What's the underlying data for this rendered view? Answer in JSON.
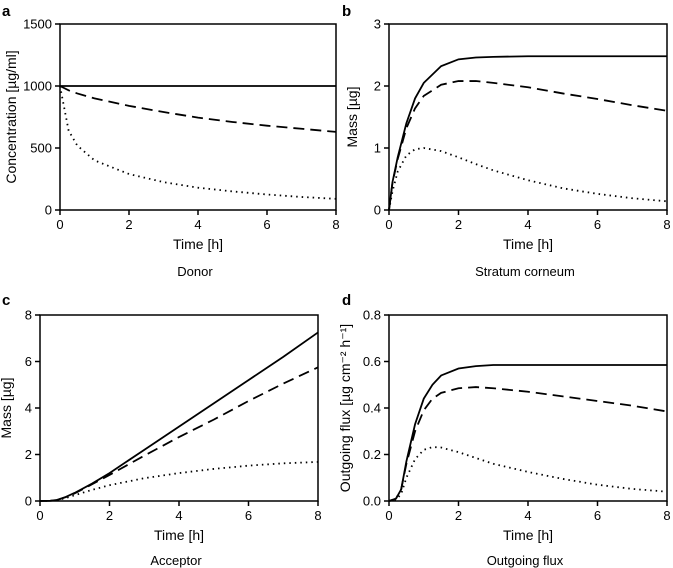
{
  "chart_data": [
    {
      "type": "line",
      "panel_label": "a",
      "caption": "Donor",
      "xlabel": "Time [h]",
      "ylabel": "Concentration [µg/ml]",
      "xlim": [
        0,
        8
      ],
      "ylim": [
        0,
        1500
      ],
      "xticks": [
        0,
        2,
        4,
        6,
        8
      ],
      "yticks": [
        0,
        500,
        1000,
        1500
      ],
      "x": [
        0,
        0.25,
        0.5,
        1,
        2,
        3,
        4,
        5,
        6,
        7,
        8
      ],
      "series": [
        {
          "name": "solid",
          "style": "solid",
          "values": [
            1000,
            1000,
            1000,
            1000,
            1000,
            1000,
            1000,
            1000,
            1000,
            1000,
            1000
          ]
        },
        {
          "name": "dashed",
          "style": "dashed",
          "values": [
            1000,
            965,
            940,
            900,
            840,
            790,
            745,
            710,
            680,
            655,
            630
          ]
        },
        {
          "name": "dotted",
          "style": "dotted",
          "values": [
            1000,
            640,
            520,
            400,
            290,
            225,
            180,
            150,
            125,
            105,
            90
          ]
        }
      ]
    },
    {
      "type": "line",
      "panel_label": "b",
      "caption": "Stratum corneum",
      "xlabel": "Time [h]",
      "ylabel": "Mass [µg]",
      "xlim": [
        0,
        8
      ],
      "ylim": [
        0,
        3
      ],
      "xticks": [
        0,
        2,
        4,
        6,
        8
      ],
      "yticks": [
        0,
        1,
        2,
        3
      ],
      "x": [
        0,
        0.1,
        0.25,
        0.5,
        0.75,
        1,
        1.5,
        2,
        2.5,
        3,
        4,
        5,
        6,
        7,
        8
      ],
      "series": [
        {
          "name": "solid",
          "style": "solid",
          "values": [
            0,
            0.45,
            0.85,
            1.4,
            1.8,
            2.05,
            2.32,
            2.43,
            2.46,
            2.47,
            2.48,
            2.48,
            2.48,
            2.48,
            2.48
          ]
        },
        {
          "name": "dashed",
          "style": "dashed",
          "values": [
            0,
            0.44,
            0.82,
            1.32,
            1.64,
            1.84,
            2.02,
            2.08,
            2.08,
            2.05,
            1.98,
            1.88,
            1.79,
            1.69,
            1.6
          ]
        },
        {
          "name": "dotted",
          "style": "dotted",
          "values": [
            0,
            0.3,
            0.62,
            0.88,
            0.98,
            1.0,
            0.95,
            0.85,
            0.74,
            0.64,
            0.48,
            0.35,
            0.26,
            0.19,
            0.14
          ]
        }
      ]
    },
    {
      "type": "line",
      "panel_label": "c",
      "caption": "Acceptor",
      "xlabel": "Time [h]",
      "ylabel": "Mass [µg]",
      "xlim": [
        0,
        8
      ],
      "ylim": [
        0,
        8
      ],
      "xticks": [
        0,
        2,
        4,
        6,
        8
      ],
      "yticks": [
        0,
        2,
        4,
        6,
        8
      ],
      "x": [
        0,
        0.3,
        0.5,
        0.75,
        1,
        1.5,
        2,
        3,
        4,
        5,
        6,
        7,
        8
      ],
      "series": [
        {
          "name": "solid",
          "style": "solid",
          "values": [
            0,
            0.01,
            0.05,
            0.18,
            0.35,
            0.75,
            1.2,
            2.2,
            3.2,
            4.2,
            5.2,
            6.2,
            7.25
          ]
        },
        {
          "name": "dashed",
          "style": "dashed",
          "values": [
            0,
            0.01,
            0.05,
            0.17,
            0.33,
            0.72,
            1.12,
            1.95,
            2.75,
            3.5,
            4.3,
            5.05,
            5.75
          ]
        },
        {
          "name": "dotted",
          "style": "dotted",
          "values": [
            0,
            0.01,
            0.04,
            0.13,
            0.25,
            0.48,
            0.68,
            0.98,
            1.2,
            1.38,
            1.52,
            1.62,
            1.68
          ]
        }
      ]
    },
    {
      "type": "line",
      "panel_label": "d",
      "caption": "Outgoing flux",
      "xlabel": "Time [h]",
      "ylabel": "Outgoing flux [µg cm⁻² h⁻¹]",
      "xlim": [
        0,
        8
      ],
      "ylim": [
        0,
        0.8
      ],
      "xticks": [
        0,
        2,
        4,
        6,
        8
      ],
      "yticks": [
        0.0,
        0.2,
        0.4,
        0.6,
        0.8
      ],
      "ytick_labels": [
        "0.0",
        "0.2",
        "0.4",
        "0.6",
        "0.8"
      ],
      "x": [
        0,
        0.2,
        0.35,
        0.5,
        0.75,
        1,
        1.25,
        1.5,
        2,
        2.5,
        3,
        4,
        5,
        6,
        7,
        8
      ],
      "series": [
        {
          "name": "solid",
          "style": "solid",
          "values": [
            0,
            0.01,
            0.05,
            0.17,
            0.33,
            0.44,
            0.5,
            0.54,
            0.57,
            0.58,
            0.585,
            0.585,
            0.585,
            0.585,
            0.585,
            0.585
          ]
        },
        {
          "name": "dashed",
          "style": "dashed",
          "values": [
            0,
            0.01,
            0.05,
            0.16,
            0.3,
            0.39,
            0.44,
            0.465,
            0.485,
            0.49,
            0.485,
            0.47,
            0.45,
            0.43,
            0.41,
            0.385
          ]
        },
        {
          "name": "dotted",
          "style": "dotted",
          "values": [
            0,
            0.005,
            0.03,
            0.1,
            0.18,
            0.22,
            0.232,
            0.23,
            0.21,
            0.185,
            0.16,
            0.125,
            0.095,
            0.07,
            0.052,
            0.04
          ]
        }
      ]
    }
  ]
}
